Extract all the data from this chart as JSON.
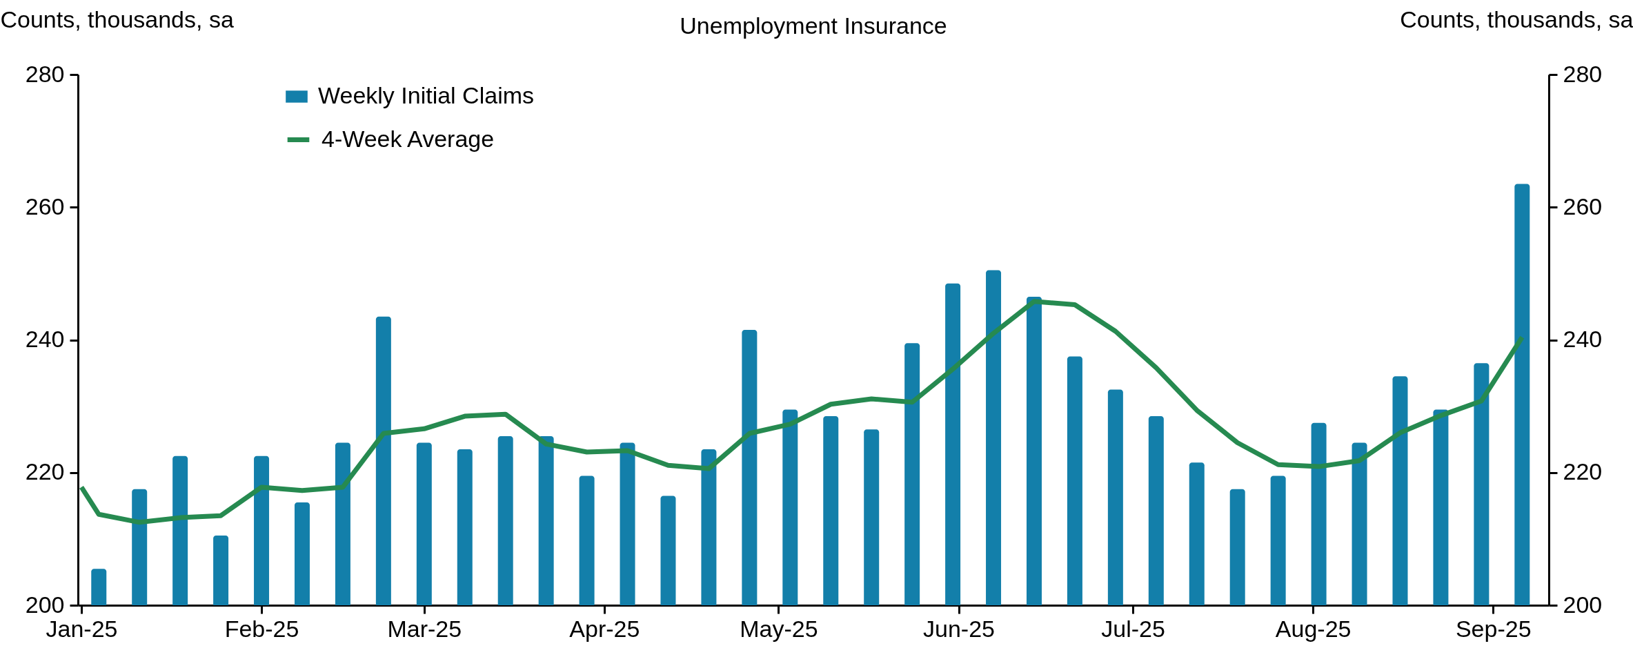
{
  "chart_data": {
    "type": "bar",
    "title": "Unemployment Insurance",
    "ylabel": "Counts, thousands, sa",
    "y2label": "Counts, thousands, sa",
    "x": [
      "2025-01-04",
      "2025-01-11",
      "2025-01-18",
      "2025-01-25",
      "2025-02-01",
      "2025-02-08",
      "2025-02-15",
      "2025-02-22",
      "2025-03-01",
      "2025-03-08",
      "2025-03-15",
      "2025-03-22",
      "2025-03-29",
      "2025-04-05",
      "2025-04-12",
      "2025-04-19",
      "2025-04-26",
      "2025-05-03",
      "2025-05-10",
      "2025-05-17",
      "2025-05-24",
      "2025-05-31",
      "2025-06-07",
      "2025-06-14",
      "2025-06-21",
      "2025-06-28",
      "2025-07-05",
      "2025-07-12",
      "2025-07-19",
      "2025-07-26",
      "2025-08-02",
      "2025-08-09",
      "2025-08-16",
      "2025-08-23",
      "2025-08-30",
      "2025-09-06"
    ],
    "series": [
      {
        "name": "Weekly Initial Claims",
        "color": "#137faa",
        "values": [
          205.5,
          217.5,
          222.5,
          210.5,
          222.5,
          215.5,
          224.5,
          243.5,
          224.5,
          223.5,
          225.5,
          225.5,
          219.5,
          224.5,
          216.5,
          223.5,
          241.5,
          229.5,
          228.5,
          226.5,
          239.5,
          248.5,
          250.5,
          246.5,
          237.5,
          232.5,
          228.5,
          221.5,
          217.5,
          219.5,
          227.5,
          224.5,
          234.5,
          229.5,
          236.5,
          263.5
        ]
      },
      {
        "name": "4-Week Average",
        "type": "line",
        "axis": "y2",
        "color": "#268a50",
        "x": [
          "2025-01-01",
          "2025-01-04",
          "2025-01-11",
          "2025-01-18",
          "2025-01-25",
          "2025-02-01",
          "2025-02-08",
          "2025-02-15",
          "2025-02-22",
          "2025-03-01",
          "2025-03-08",
          "2025-03-15",
          "2025-03-22",
          "2025-03-29",
          "2025-04-05",
          "2025-04-12",
          "2025-04-19",
          "2025-04-26",
          "2025-05-03",
          "2025-05-10",
          "2025-05-17",
          "2025-05-24",
          "2025-05-31",
          "2025-06-07",
          "2025-06-14",
          "2025-06-21",
          "2025-06-28",
          "2025-07-05",
          "2025-07-12",
          "2025-07-19",
          "2025-07-26",
          "2025-08-02",
          "2025-08-09",
          "2025-08-16",
          "2025-08-23",
          "2025-08-30",
          "2025-09-06"
        ],
        "values": [
          217.8,
          213.7,
          212.5,
          213.2,
          213.5,
          217.8,
          217.3,
          217.8,
          225.9,
          226.6,
          228.5,
          228.8,
          224.3,
          223.1,
          223.3,
          221.1,
          220.6,
          225.9,
          227.3,
          230.3,
          231.1,
          230.6,
          235.6,
          241.0,
          245.8,
          245.3,
          241.3,
          235.8,
          229.4,
          224.5,
          221.2,
          220.9,
          221.8,
          226.0,
          228.6,
          230.8,
          240.4
        ]
      }
    ],
    "xlim": [
      "2025-01-01",
      "2025-09-10"
    ],
    "xticks": [
      {
        "value": "2025-01-01",
        "label": "Jan-25"
      },
      {
        "value": "2025-02-01",
        "label": "Feb-25"
      },
      {
        "value": "2025-03-01",
        "label": "Mar-25"
      },
      {
        "value": "2025-04-01",
        "label": "Apr-25"
      },
      {
        "value": "2025-05-01",
        "label": "May-25"
      },
      {
        "value": "2025-06-01",
        "label": "Jun-25"
      },
      {
        "value": "2025-07-01",
        "label": "Jul-25"
      },
      {
        "value": "2025-08-01",
        "label": "Aug-25"
      },
      {
        "value": "2025-09-01",
        "label": "Sep-25"
      }
    ],
    "ylim": [
      200,
      280
    ],
    "yticks": [
      200,
      220,
      240,
      260,
      280
    ],
    "y2lim": [
      200,
      280
    ],
    "y2ticks": [
      200,
      220,
      240,
      260,
      280
    ],
    "legend": "top left"
  }
}
